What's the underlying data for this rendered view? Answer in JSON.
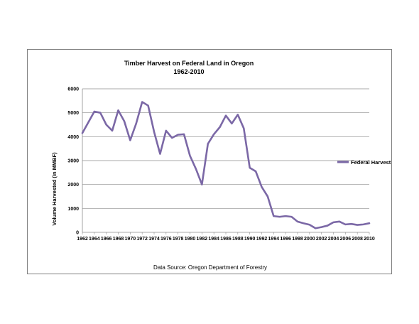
{
  "chart_data": {
    "type": "line",
    "title": "Timber Harvest on Federal Land in Oregon",
    "subtitle": "1962-2010",
    "xlabel": "",
    "ylabel": "Volume Harvested (in MMBF)",
    "ylim": [
      0,
      6000
    ],
    "yticks": [
      "0",
      "1000",
      "2000",
      "3000",
      "4000",
      "5000",
      "6000"
    ],
    "xticks": [
      "1962",
      "1964",
      "1966",
      "1968",
      "1970",
      "1972",
      "1974",
      "1976",
      "1978",
      "1980",
      "1982",
      "1984",
      "1986",
      "1988",
      "1990",
      "1992",
      "1994",
      "1996",
      "1998",
      "2000",
      "2002",
      "2004",
      "2006",
      "2008",
      "2010"
    ],
    "grid": true,
    "legend_position": "right",
    "color": "#7b68a6",
    "source_note": "Data Source: Oregon Department of Forestry",
    "series": [
      {
        "name": "Federal Harvest",
        "x": [
          1962,
          1963,
          1964,
          1965,
          1966,
          1967,
          1968,
          1969,
          1970,
          1971,
          1972,
          1973,
          1974,
          1975,
          1976,
          1977,
          1978,
          1979,
          1980,
          1981,
          1982,
          1983,
          1984,
          1985,
          1986,
          1987,
          1988,
          1989,
          1990,
          1991,
          1992,
          1993,
          1994,
          1995,
          1996,
          1997,
          1998,
          1999,
          2000,
          2001,
          2002,
          2003,
          2004,
          2005,
          2006,
          2007,
          2008,
          2009,
          2010
        ],
        "values": [
          4150,
          4600,
          5050,
          5000,
          4500,
          4250,
          5100,
          4650,
          3850,
          4550,
          5450,
          5300,
          4200,
          3280,
          4250,
          3950,
          4080,
          4100,
          3200,
          2650,
          2000,
          3700,
          4100,
          4400,
          4880,
          4550,
          4920,
          4350,
          2700,
          2550,
          1900,
          1500,
          680,
          650,
          680,
          650,
          450,
          380,
          320,
          170,
          220,
          280,
          420,
          450,
          330,
          350,
          310,
          330,
          380
        ]
      }
    ]
  }
}
